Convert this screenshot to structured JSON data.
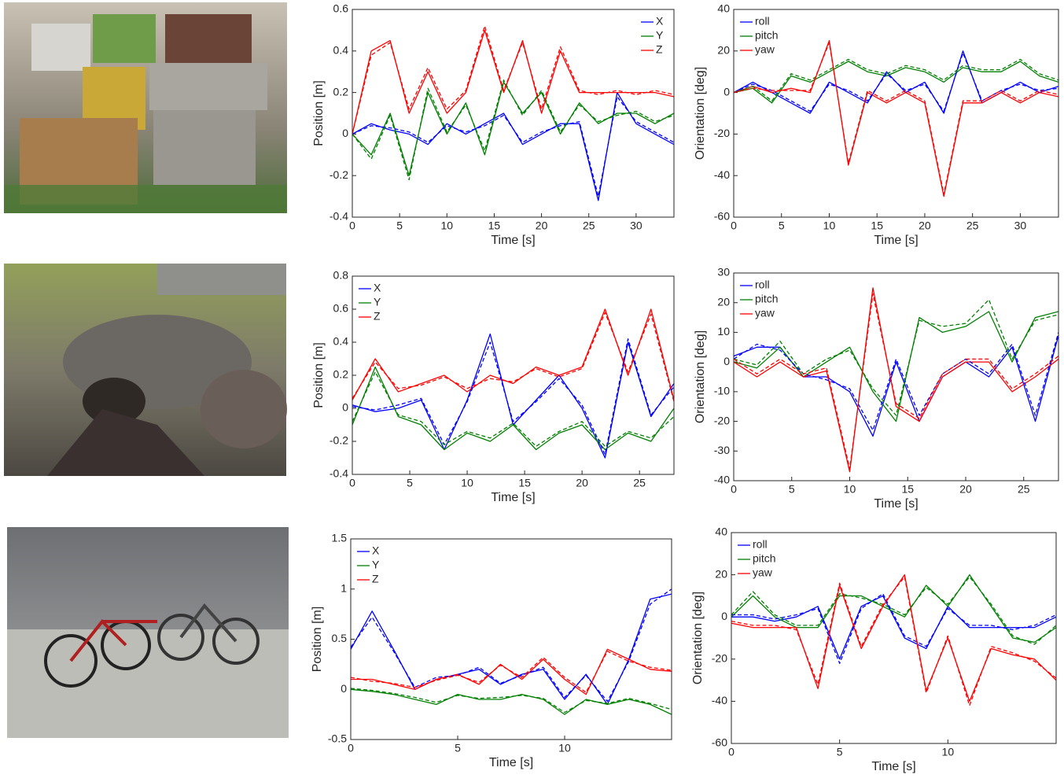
{
  "chart_data": [
    {
      "type": "line",
      "xlabel": "Time [s]",
      "ylabel": "Position [m]",
      "legend": "top-right",
      "xlim": [
        0,
        34
      ],
      "xticks": [
        0,
        5,
        10,
        15,
        20,
        25,
        30
      ],
      "ylim": [
        -0.4,
        0.6
      ],
      "yticks": [
        -0.4,
        -0.2,
        0,
        0.2,
        0.4,
        0.6
      ],
      "x": [
        0,
        2,
        4,
        6,
        8,
        10,
        12,
        14,
        16,
        18,
        20,
        22,
        24,
        26,
        28,
        30,
        32,
        34
      ],
      "series": [
        {
          "name": "X",
          "color": "#0000ff",
          "values": [
            0,
            0.05,
            0.02,
            0,
            -0.05,
            0.05,
            0,
            0.05,
            0.1,
            -0.05,
            0,
            0.05,
            0.05,
            -0.32,
            0.2,
            0.05,
            0,
            -0.05
          ]
        },
        {
          "name": "Y",
          "color": "#008000",
          "values": [
            0,
            -0.1,
            0.1,
            -0.2,
            0.2,
            0,
            0.15,
            -0.1,
            0.25,
            0.1,
            0.2,
            0,
            0.15,
            0.05,
            0.1,
            0.1,
            0.05,
            0.1
          ]
        },
        {
          "name": "Z",
          "color": "#ff0000",
          "values": [
            0,
            0.4,
            0.45,
            0.1,
            0.3,
            0.1,
            0.2,
            0.5,
            0.2,
            0.45,
            0.1,
            0.4,
            0.2,
            0.2,
            0.2,
            0.2,
            0.2,
            0.18
          ]
        },
        {
          "color": "#0000ff",
          "dash": true,
          "values": [
            0,
            0.04,
            0.03,
            0.01,
            -0.04,
            0.04,
            0.01,
            0.04,
            0.09,
            -0.04,
            0.01,
            0.04,
            0.06,
            -0.3,
            0.18,
            0.06,
            0.01,
            -0.04
          ]
        },
        {
          "color": "#008000",
          "dash": true,
          "values": [
            0,
            -0.12,
            0.09,
            -0.22,
            0.22,
            0.01,
            0.14,
            -0.08,
            0.26,
            0.09,
            0.21,
            0.01,
            0.14,
            0.06,
            0.09,
            0.11,
            0.06,
            0.09
          ]
        },
        {
          "color": "#ff0000",
          "dash": true,
          "values": [
            0,
            0.38,
            0.44,
            0.12,
            0.32,
            0.12,
            0.21,
            0.52,
            0.21,
            0.44,
            0.12,
            0.42,
            0.21,
            0.19,
            0.21,
            0.19,
            0.21,
            0.19
          ]
        }
      ]
    },
    {
      "type": "line",
      "xlabel": "Time [s]",
      "ylabel": "Orientation [deg]",
      "legend": "top-left",
      "xlim": [
        0,
        34
      ],
      "xticks": [
        0,
        5,
        10,
        15,
        20,
        25,
        30
      ],
      "ylim": [
        -60,
        40
      ],
      "yticks": [
        -60,
        -40,
        -20,
        0,
        20,
        40
      ],
      "x": [
        0,
        2,
        4,
        6,
        8,
        10,
        12,
        14,
        16,
        18,
        20,
        22,
        24,
        26,
        28,
        30,
        32,
        34
      ],
      "series": [
        {
          "name": "roll",
          "color": "#0000ff",
          "values": [
            0,
            5,
            0,
            -5,
            -10,
            5,
            0,
            -5,
            10,
            0,
            5,
            -10,
            20,
            -5,
            0,
            5,
            0,
            3
          ]
        },
        {
          "name": "pitch",
          "color": "#008000",
          "values": [
            0,
            2,
            -5,
            8,
            5,
            10,
            15,
            10,
            8,
            12,
            10,
            5,
            12,
            10,
            10,
            15,
            8,
            5
          ]
        },
        {
          "name": "yaw",
          "color": "#ff0000",
          "values": [
            0,
            3,
            0,
            2,
            0,
            25,
            -35,
            0,
            -5,
            0,
            -5,
            -50,
            -5,
            -5,
            0,
            -5,
            0,
            -2
          ]
        },
        {
          "color": "#0000ff",
          "dash": true,
          "values": [
            0,
            4,
            1,
            -4,
            -9,
            4,
            1,
            -4,
            9,
            1,
            4,
            -9,
            19,
            -4,
            1,
            4,
            1,
            2
          ]
        },
        {
          "color": "#008000",
          "dash": true,
          "values": [
            0,
            3,
            -4,
            9,
            6,
            11,
            16,
            11,
            9,
            13,
            11,
            6,
            13,
            11,
            11,
            16,
            9,
            6
          ]
        },
        {
          "color": "#ff0000",
          "dash": true,
          "values": [
            0,
            2,
            1,
            1,
            1,
            24,
            -34,
            1,
            -4,
            1,
            -4,
            -49,
            -4,
            -4,
            1,
            -4,
            1,
            -1
          ]
        }
      ]
    },
    {
      "type": "line",
      "xlabel": "Time [s]",
      "ylabel": "Position [m]",
      "legend": "top-left",
      "xlim": [
        0,
        28
      ],
      "xticks": [
        0,
        5,
        10,
        15,
        20,
        25
      ],
      "ylim": [
        -0.4,
        0.8
      ],
      "yticks": [
        -0.4,
        -0.2,
        0,
        0.2,
        0.4,
        0.6,
        0.8
      ],
      "x": [
        0,
        2,
        4,
        6,
        8,
        10,
        12,
        14,
        16,
        18,
        20,
        22,
        24,
        26,
        28
      ],
      "series": [
        {
          "name": "X",
          "color": "#0000ff",
          "values": [
            0.02,
            -0.02,
            0,
            0.05,
            -0.25,
            0.05,
            0.45,
            -0.1,
            0.05,
            0.2,
            0,
            -0.3,
            0.4,
            -0.05,
            0.15
          ]
        },
        {
          "name": "Y",
          "color": "#008000",
          "values": [
            -0.1,
            0.25,
            -0.05,
            -0.1,
            -0.25,
            -0.15,
            -0.2,
            -0.1,
            -0.25,
            -0.15,
            -0.1,
            -0.25,
            -0.15,
            -0.2,
            0
          ]
        },
        {
          "name": "Z",
          "color": "#ff0000",
          "values": [
            0.05,
            0.3,
            0.1,
            0.15,
            0.2,
            0.1,
            0.2,
            0.15,
            0.25,
            0.2,
            0.25,
            0.6,
            0.2,
            0.6,
            0.05
          ]
        },
        {
          "color": "#0000ff",
          "dash": true,
          "values": [
            0.01,
            -0.01,
            0.02,
            0.06,
            -0.22,
            0.04,
            0.4,
            -0.08,
            0.04,
            0.18,
            0.02,
            -0.28,
            0.42,
            -0.04,
            0.13
          ]
        },
        {
          "color": "#008000",
          "dash": true,
          "values": [
            -0.08,
            0.22,
            -0.04,
            -0.08,
            -0.22,
            -0.14,
            -0.18,
            -0.09,
            -0.23,
            -0.14,
            -0.08,
            -0.23,
            -0.14,
            -0.18,
            -0.05
          ]
        },
        {
          "color": "#ff0000",
          "dash": true,
          "values": [
            0.06,
            0.28,
            0.12,
            0.14,
            0.19,
            0.12,
            0.18,
            0.16,
            0.24,
            0.19,
            0.24,
            0.58,
            0.22,
            0.57,
            0.04
          ]
        }
      ]
    },
    {
      "type": "line",
      "xlabel": "Time [s]",
      "ylabel": "Orientation [deg]",
      "legend": "top-left",
      "xlim": [
        0,
        28
      ],
      "xticks": [
        0,
        5,
        10,
        15,
        20,
        25
      ],
      "ylim": [
        -40,
        30
      ],
      "yticks": [
        -40,
        -30,
        -20,
        -10,
        0,
        10,
        20,
        30
      ],
      "x": [
        0,
        2,
        4,
        6,
        8,
        10,
        12,
        14,
        16,
        18,
        20,
        22,
        24,
        26,
        28
      ],
      "series": [
        {
          "name": "roll",
          "color": "#0000ff",
          "values": [
            2,
            5,
            5,
            -5,
            -5,
            -10,
            -25,
            0,
            -20,
            -5,
            0,
            -5,
            5,
            -20,
            9
          ]
        },
        {
          "name": "pitch",
          "color": "#008000",
          "values": [
            0,
            -2,
            5,
            -5,
            0,
            5,
            -10,
            -20,
            15,
            10,
            12,
            17,
            0,
            15,
            17
          ]
        },
        {
          "name": "yaw",
          "color": "#ff0000",
          "values": [
            0,
            -5,
            0,
            -5,
            -3,
            -37,
            25,
            -15,
            -20,
            -5,
            0,
            0,
            -10,
            -5,
            1
          ]
        },
        {
          "color": "#0000ff",
          "dash": true,
          "values": [
            1,
            6,
            4,
            -4,
            -6,
            -9,
            -23,
            1,
            -18,
            -4,
            1,
            -4,
            6,
            -18,
            10
          ]
        },
        {
          "color": "#008000",
          "dash": true,
          "values": [
            1,
            -1,
            7,
            -4,
            1,
            4,
            -9,
            -18,
            14,
            12,
            13,
            21,
            1,
            14,
            16
          ]
        },
        {
          "color": "#ff0000",
          "dash": true,
          "values": [
            1,
            -4,
            1,
            -4,
            -2,
            -36,
            23,
            -14,
            -19,
            -4,
            1,
            1,
            -9,
            -4,
            2
          ]
        }
      ]
    },
    {
      "type": "line",
      "xlabel": "Time [s]",
      "ylabel": "Position [m]",
      "legend": "top-left",
      "xlim": [
        0,
        15
      ],
      "xticks": [
        0,
        5,
        10
      ],
      "ylim": [
        -0.5,
        1.5
      ],
      "yticks": [
        -0.5,
        0,
        0.5,
        1,
        1.5
      ],
      "x": [
        0,
        1,
        2,
        3,
        4,
        5,
        6,
        7,
        8,
        9,
        10,
        11,
        12,
        13,
        14,
        15
      ],
      "series": [
        {
          "name": "X",
          "color": "#0000ff",
          "values": [
            0.4,
            0.78,
            0.4,
            0,
            0.1,
            0.15,
            0.2,
            0.05,
            0.15,
            0.2,
            -0.1,
            0.15,
            -0.15,
            0.3,
            0.9,
            0.95
          ]
        },
        {
          "name": "Y",
          "color": "#008000",
          "values": [
            0,
            -0.02,
            -0.05,
            -0.1,
            -0.15,
            -0.05,
            -0.1,
            -0.1,
            -0.05,
            -0.1,
            -0.25,
            -0.1,
            -0.15,
            -0.1,
            -0.15,
            -0.25
          ]
        },
        {
          "name": "Z",
          "color": "#ff0000",
          "values": [
            0.1,
            0.1,
            0.05,
            0,
            0.1,
            0.15,
            0.05,
            0.25,
            0.1,
            0.3,
            0.1,
            -0.05,
            0.4,
            0.3,
            0.2,
            0.18
          ]
        },
        {
          "color": "#0000ff",
          "dash": true,
          "values": [
            0.42,
            0.72,
            0.38,
            0.02,
            0.12,
            0.14,
            0.22,
            0.06,
            0.14,
            0.22,
            -0.08,
            0.14,
            -0.12,
            0.28,
            0.85,
            1
          ]
        },
        {
          "color": "#008000",
          "dash": true,
          "values": [
            0.01,
            -0.01,
            -0.04,
            -0.08,
            -0.13,
            -0.06,
            -0.09,
            -0.08,
            -0.06,
            -0.09,
            -0.23,
            -0.11,
            -0.14,
            -0.09,
            -0.14,
            -0.2
          ]
        },
        {
          "color": "#ff0000",
          "dash": true,
          "values": [
            0.12,
            0.08,
            0.06,
            0.02,
            0.09,
            0.14,
            0.07,
            0.24,
            0.12,
            0.32,
            0.12,
            -0.03,
            0.38,
            0.28,
            0.22,
            0.19
          ]
        }
      ]
    },
    {
      "type": "line",
      "xlabel": "Time [s]",
      "ylabel": "Orientation [deg]",
      "legend": "top-left",
      "xlim": [
        0,
        15
      ],
      "xticks": [
        0,
        5,
        10
      ],
      "ylim": [
        -60,
        40
      ],
      "yticks": [
        -60,
        -40,
        -20,
        0,
        20,
        40
      ],
      "x": [
        0,
        1,
        2,
        3,
        4,
        5,
        6,
        7,
        8,
        9,
        10,
        11,
        12,
        13,
        14,
        15
      ],
      "series": [
        {
          "name": "roll",
          "color": "#0000ff",
          "values": [
            0,
            0,
            -2,
            0,
            5,
            -20,
            5,
            10,
            -10,
            -15,
            5,
            -5,
            -5,
            -5,
            -5,
            0
          ]
        },
        {
          "name": "pitch",
          "color": "#008000",
          "values": [
            0,
            10,
            0,
            -5,
            -5,
            10,
            10,
            5,
            0,
            15,
            5,
            20,
            5,
            -10,
            -12,
            -5
          ]
        },
        {
          "name": "yaw",
          "color": "#ff0000",
          "values": [
            -3,
            -5,
            -5,
            -5,
            -34,
            15,
            -15,
            5,
            20,
            -35,
            -10,
            -40,
            -15,
            -18,
            -20,
            -30
          ]
        },
        {
          "color": "#0000ff",
          "dash": true,
          "values": [
            1,
            1,
            -1,
            1,
            4,
            -22,
            4,
            11,
            -9,
            -14,
            4,
            -4,
            -4,
            -6,
            -4,
            1
          ]
        },
        {
          "color": "#008000",
          "dash": true,
          "values": [
            1,
            12,
            1,
            -4,
            -4,
            11,
            9,
            6,
            1,
            14,
            6,
            19,
            6,
            -9,
            -13,
            -4
          ]
        },
        {
          "color": "#ff0000",
          "dash": true,
          "values": [
            -2,
            -4,
            -4,
            -6,
            -32,
            16,
            -14,
            6,
            19,
            -36,
            -9,
            -42,
            -14,
            -17,
            -21,
            -29
          ]
        }
      ]
    }
  ]
}
